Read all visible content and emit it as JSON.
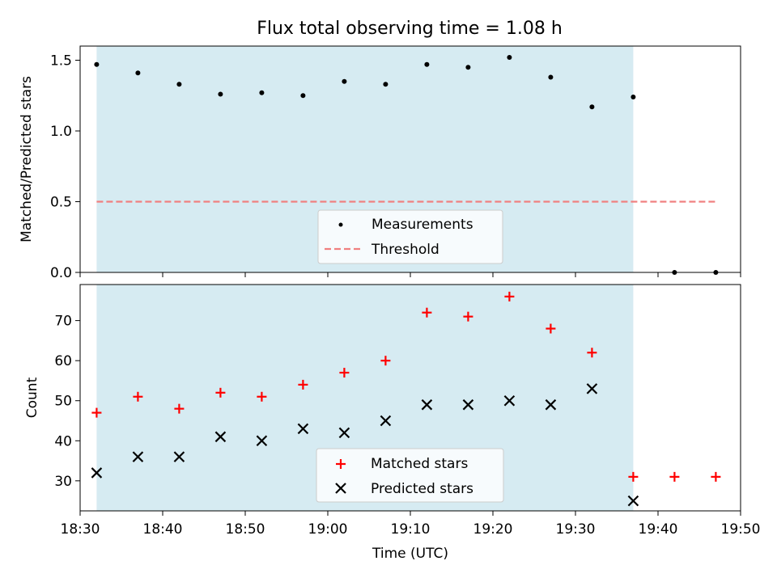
{
  "chart_data": [
    {
      "type": "scatter",
      "title": "Flux total observing time = 1.08 h",
      "xlabel": "",
      "ylabel": "Matched/Predicted stars",
      "ylim": [
        0,
        1.6
      ],
      "yticks": [
        "0.0",
        "0.5",
        "1.0",
        "1.5"
      ],
      "xlim": [
        "18:30",
        "19:50"
      ],
      "shaded_interval": [
        "18:32",
        "19:37"
      ],
      "legend": {
        "position": "lower center",
        "entries": [
          "Measurements",
          "Threshold"
        ]
      },
      "series": [
        {
          "name": "Measurements",
          "marker": "dot",
          "color": "#000000",
          "x": [
            "18:32",
            "18:37",
            "18:42",
            "18:47",
            "18:52",
            "18:57",
            "19:02",
            "19:07",
            "19:12",
            "19:17",
            "19:22",
            "19:27",
            "19:32",
            "19:37",
            "19:42",
            "19:47"
          ],
          "y": [
            1.47,
            1.41,
            1.33,
            1.26,
            1.27,
            1.25,
            1.35,
            1.33,
            1.47,
            1.45,
            1.52,
            1.38,
            1.17,
            1.24,
            0.0,
            0.0
          ]
        },
        {
          "name": "Threshold",
          "style": "dashed",
          "color": "#f08080",
          "x": [
            "18:32",
            "19:47"
          ],
          "y": [
            0.5,
            0.5
          ]
        }
      ]
    },
    {
      "type": "scatter",
      "title": "",
      "xlabel": "Time (UTC)",
      "ylabel": "Count",
      "ylim": [
        22.5,
        79
      ],
      "yticks": [
        "30",
        "40",
        "50",
        "60",
        "70"
      ],
      "xticks": [
        "18:30",
        "18:40",
        "18:50",
        "19:00",
        "19:10",
        "19:20",
        "19:30",
        "19:40",
        "19:50"
      ],
      "xlim": [
        "18:30",
        "19:50"
      ],
      "shaded_interval": [
        "18:32",
        "19:37"
      ],
      "legend": {
        "position": "lower center",
        "entries": [
          "Matched stars",
          "Predicted stars"
        ]
      },
      "series": [
        {
          "name": "Matched stars",
          "marker": "plus",
          "color": "#ff0000",
          "x": [
            "18:32",
            "18:37",
            "18:42",
            "18:47",
            "18:52",
            "18:57",
            "19:02",
            "19:07",
            "19:12",
            "19:17",
            "19:22",
            "19:27",
            "19:32",
            "19:37",
            "19:42",
            "19:47"
          ],
          "y": [
            47,
            51,
            48,
            52,
            51,
            54,
            57,
            60,
            72,
            71,
            76,
            68,
            62,
            31,
            31,
            31
          ]
        },
        {
          "name": "Predicted stars",
          "marker": "x",
          "color": "#000000",
          "x": [
            "18:32",
            "18:37",
            "18:42",
            "18:47",
            "18:52",
            "18:57",
            "19:02",
            "19:07",
            "19:12",
            "19:17",
            "19:22",
            "19:27",
            "19:32",
            "19:37"
          ],
          "y": [
            32,
            36,
            36,
            41,
            40,
            43,
            42,
            45,
            49,
            49,
            50,
            49,
            53,
            25
          ]
        }
      ]
    }
  ],
  "colors": {
    "shade": "#add8e6",
    "threshold": "#f08080",
    "matched": "#ff0000",
    "predicted": "#000000",
    "measurement": "#000000"
  }
}
